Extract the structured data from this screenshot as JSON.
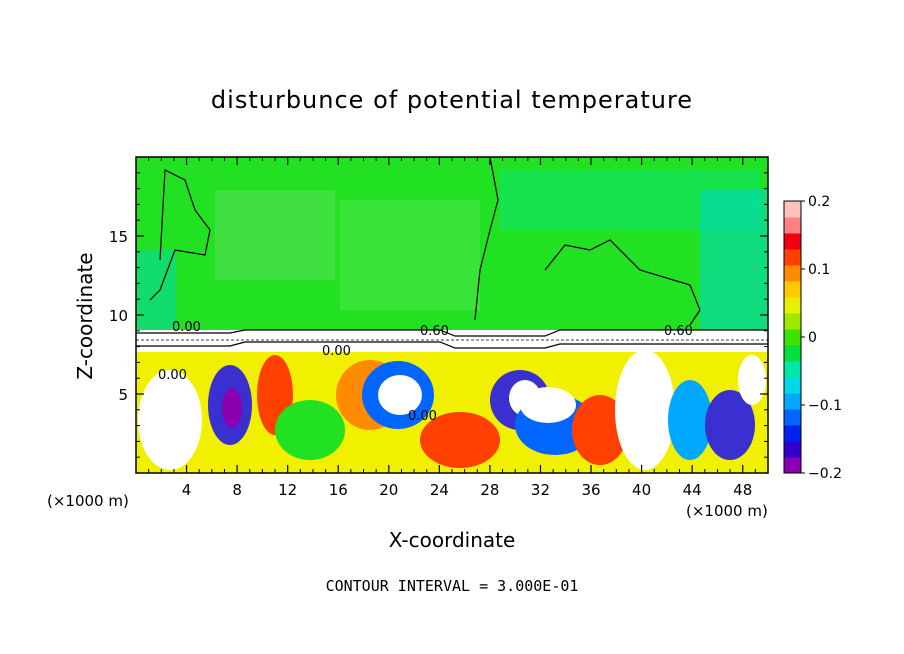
{
  "chart_data": {
    "type": "heatmap",
    "title": "disturbunce of potential temperature",
    "xlabel": "X-coordinate",
    "ylabel": "Z-coordinate",
    "x_unit_label": "(×1000 m)",
    "x_unit_label_right": "(×1000 m)",
    "xlim": [
      0,
      50
    ],
    "ylim": [
      0,
      20
    ],
    "x_ticks": [
      4,
      8,
      12,
      16,
      20,
      24,
      28,
      32,
      36,
      40,
      44,
      48
    ],
    "y_ticks": [
      5,
      10,
      15
    ],
    "colorbar": {
      "min": -0.2,
      "max": 0.2,
      "tick_values": [
        0.2,
        0.1,
        0,
        -0.1,
        -0.2
      ],
      "tick_labels": [
        "0.2",
        "0.1",
        "0",
        "−0.1",
        "−0.2"
      ],
      "colors": [
        "#8a00b0",
        "#3300cc",
        "#0022ee",
        "#0066ff",
        "#00a8ff",
        "#00d8e8",
        "#00e8a8",
        "#00e040",
        "#40e000",
        "#a0e800",
        "#e8f000",
        "#ffc800",
        "#ff8c00",
        "#ff4000",
        "#f00010",
        "#ff8080",
        "#ffc0c0"
      ]
    },
    "contour_labels": [
      "0.00",
      "0.00",
      "0.00",
      "0.00",
      "0.60",
      "0.60"
    ],
    "contour_interval_text": "CONTOUR INTERVAL = 3.000E-01"
  }
}
